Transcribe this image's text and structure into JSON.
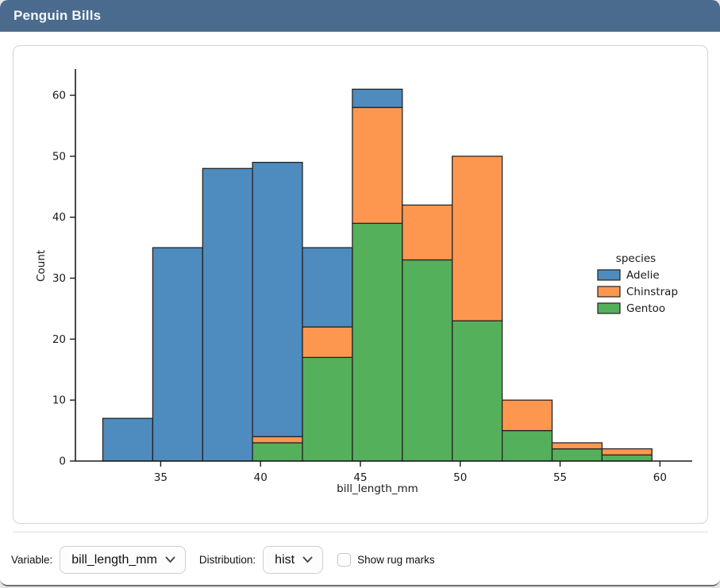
{
  "window": {
    "title": "Penguin Bills",
    "title_bar_color": "#4a6b8d"
  },
  "chart_data": {
    "type": "bar",
    "subtype": "stacked_histogram",
    "title": "",
    "xlabel": "bill_length_mm",
    "ylabel": "Count",
    "xlim": [
      30.73,
      60.98
    ],
    "ylim": [
      0,
      64.05
    ],
    "x_ticks": [
      35,
      40,
      45,
      50,
      55,
      60
    ],
    "y_ticks": [
      0,
      10,
      20,
      30,
      40,
      50,
      60
    ],
    "grid": false,
    "bin_edges": [
      32.1,
      34.6,
      37.1,
      39.6,
      42.1,
      44.6,
      47.1,
      49.6,
      52.1,
      54.6,
      57.1,
      59.6
    ],
    "stack_order_bottom_to_top": [
      "Gentoo",
      "Chinstrap",
      "Adelie"
    ],
    "series": [
      {
        "name": "Adelie",
        "color": "#4E8BBE",
        "values": [
          7,
          35,
          48,
          45,
          13,
          3,
          0,
          0,
          0,
          0,
          0
        ]
      },
      {
        "name": "Chinstrap",
        "color": "#FD9750",
        "values": [
          0,
          0,
          0,
          1,
          5,
          19,
          9,
          27,
          5,
          1,
          1
        ]
      },
      {
        "name": "Gentoo",
        "color": "#55B05C",
        "values": [
          0,
          0,
          0,
          3,
          17,
          39,
          33,
          23,
          5,
          2,
          1
        ]
      }
    ],
    "bin_totals": [
      7,
      35,
      48,
      49,
      35,
      61,
      42,
      50,
      10,
      3,
      2
    ],
    "bar_edge_color": "#212121",
    "axis_color": "#1a1a1a",
    "legend": {
      "title": "species",
      "entries": [
        "Adelie",
        "Chinstrap",
        "Gentoo"
      ],
      "position": "center-right",
      "frame": false
    }
  },
  "footer": {
    "variable_label": "Variable:",
    "variable_value": "bill_length_mm",
    "distribution_label": "Distribution:",
    "distribution_value": "hist",
    "rug_label": "Show rug marks",
    "rug_checked": false
  }
}
